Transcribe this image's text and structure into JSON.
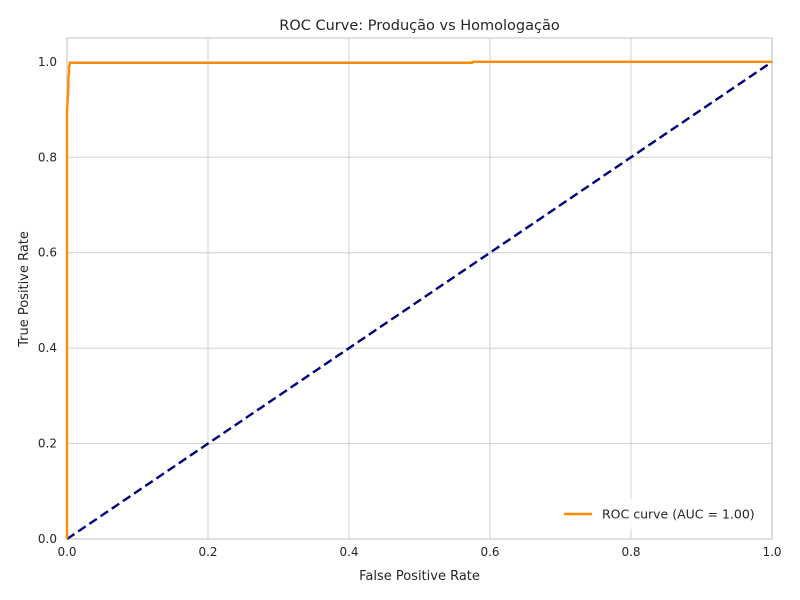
{
  "chart_data": {
    "type": "line",
    "title": "ROC Curve: Produção vs Homologação",
    "xlabel": "False Positive Rate",
    "ylabel": "True Positive Rate",
    "xlim": [
      0.0,
      1.0
    ],
    "ylim": [
      0.0,
      1.05
    ],
    "x_ticks": [
      0.0,
      0.2,
      0.4,
      0.6,
      0.8,
      1.0
    ],
    "y_ticks": [
      0.0,
      0.2,
      0.4,
      0.6,
      0.8,
      1.0
    ],
    "x_tick_labels": [
      "0.0",
      "0.2",
      "0.4",
      "0.6",
      "0.8",
      "1.0"
    ],
    "y_tick_labels": [
      "0.0",
      "0.2",
      "0.4",
      "0.6",
      "0.8",
      "1.0"
    ],
    "grid": true,
    "legend_position": "lower-right",
    "series": [
      {
        "name": "ROC curve (AUC = 1.00)",
        "color": "#ff8c00",
        "style": "solid",
        "x": [
          0.0,
          0.0,
          0.001,
          0.002,
          0.002,
          0.003,
          0.003,
          0.004,
          0.004,
          0.575,
          0.575,
          1.0
        ],
        "y": [
          0.0,
          0.9,
          0.92,
          0.95,
          0.97,
          0.975,
          0.99,
          0.995,
          0.998,
          0.998,
          1.0,
          1.0
        ]
      },
      {
        "name": "",
        "color": "#000080",
        "style": "dashed",
        "x": [
          0.0,
          1.0
        ],
        "y": [
          0.0,
          1.0
        ]
      }
    ]
  }
}
